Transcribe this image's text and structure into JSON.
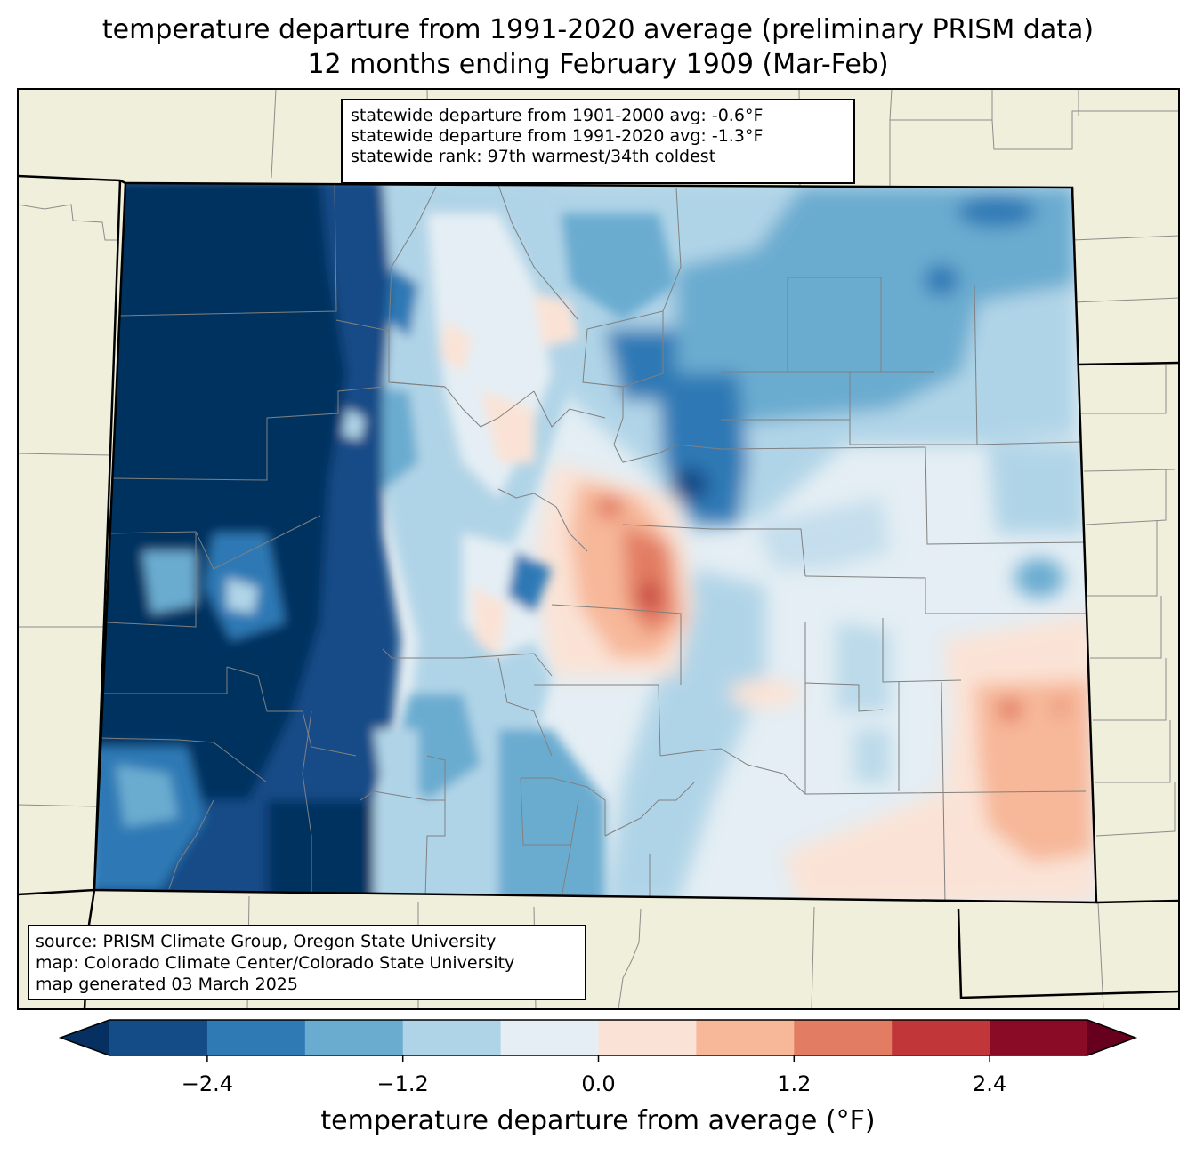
{
  "title": {
    "line1": "temperature departure from 1991-2020 average (preliminary PRISM data)",
    "line2": "12 months ending February 1909 (Mar-Feb)"
  },
  "stats": {
    "line1": "statewide departure from 1901-2000 avg: -0.6°F",
    "line2": "statewide departure from 1991-2020 avg: -1.3°F",
    "line3": "statewide rank: 97th warmest/34th coldest"
  },
  "credits": {
    "line1": "source: PRISM Climate Group, Oregon State University",
    "line2": "map: Colorado Climate Center/Colorado State University",
    "line3": "map generated 03 March 2025"
  },
  "colorbar": {
    "label": "temperature departure from average (°F)",
    "ticks": [
      "−2.4",
      "−1.2",
      "0.0",
      "1.2",
      "2.4"
    ],
    "tick_values": [
      -2.4,
      -1.2,
      0.0,
      1.2,
      2.4
    ],
    "range": [
      -3.0,
      3.0
    ],
    "colors": [
      "#053061",
      "#134c87",
      "#2f79b5",
      "#6aacd0",
      "#b0d4e7",
      "#e4eef4",
      "#fae3d6",
      "#f7b799",
      "#e27d63",
      "#c13639",
      "#8a0b25",
      "#67001f"
    ]
  },
  "map_colors": {
    "land": "#efefdb",
    "state_border": "#000000",
    "county_border": "#808080"
  }
}
